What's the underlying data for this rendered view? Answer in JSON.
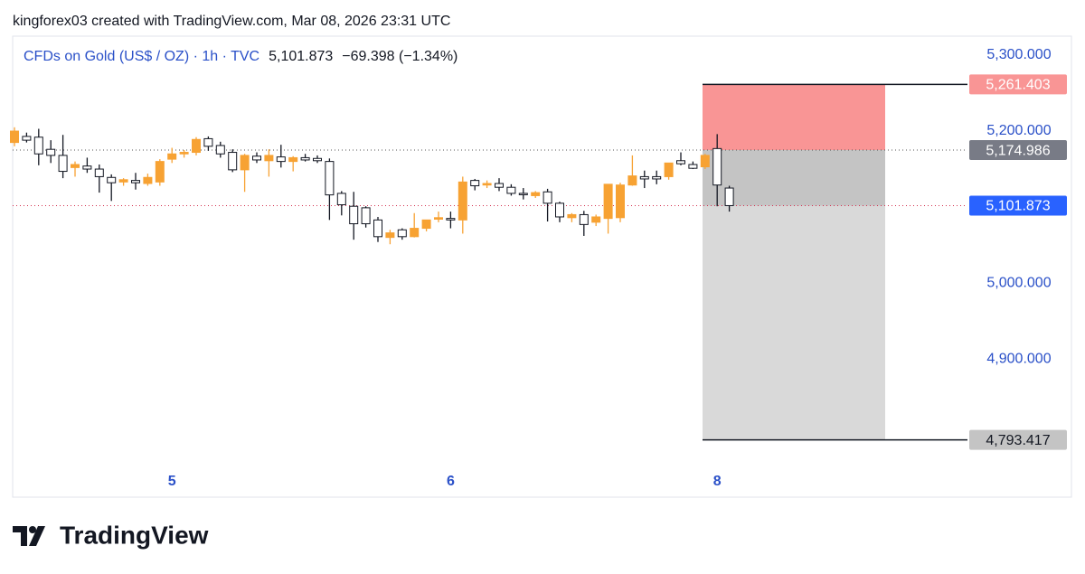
{
  "header": "kingforex03 created with TradingView.com, Mar 08, 2026 23:31 UTC",
  "footer": {
    "brand": "TradingView"
  },
  "chart_data": {
    "type": "candlestick",
    "legend": {
      "symbol": "CFDs on Gold (US$ / OZ) · 1h · TVC",
      "price": {
        "value": 5101.873,
        "label": "5,101.873"
      },
      "change": "−69.398 (−1.34%)"
    },
    "categories": [
      null,
      null,
      null,
      null,
      null,
      null,
      null,
      null,
      null,
      null,
      null,
      null,
      null,
      "5",
      null,
      null,
      null,
      null,
      null,
      null,
      null,
      null,
      null,
      null,
      null,
      null,
      null,
      null,
      null,
      null,
      null,
      null,
      null,
      null,
      null,
      null,
      "6",
      null,
      null,
      null,
      null,
      null,
      null,
      null,
      null,
      null,
      null,
      null,
      null,
      null,
      null,
      null,
      null,
      null,
      null,
      null,
      null,
      null,
      "8",
      null
    ],
    "open": [
      5185,
      5193,
      5192,
      5176,
      5168,
      5152,
      5154,
      5150,
      5139,
      5133,
      5135,
      5131,
      5133,
      5163,
      5170,
      5172,
      5190,
      5181,
      5172,
      5149,
      5167,
      5161,
      5166,
      5160,
      5165,
      5164,
      5160,
      5118,
      5101,
      5099,
      5083,
      5060,
      5070,
      5061,
      5072,
      5084,
      5085,
      5083,
      5135,
      5129,
      5131,
      5126,
      5118,
      5115,
      5120,
      5105,
      5086,
      5090,
      5080,
      5085,
      5086,
      5129,
      5140,
      5140,
      5140,
      5161,
      5156,
      5153,
      5177,
      5125
    ],
    "high": [
      5205,
      5198,
      5203,
      5188,
      5195,
      5160,
      5165,
      5156,
      5143,
      5138,
      5145,
      5144,
      5163,
      5178,
      5175,
      5192,
      5193,
      5186,
      5176,
      5170,
      5172,
      5176,
      5182,
      5167,
      5170,
      5168,
      5164,
      5121,
      5120,
      5101,
      5087,
      5070,
      5072,
      5092,
      5083,
      5094,
      5094,
      5140,
      5137,
      5135,
      5138,
      5130,
      5125,
      5121,
      5124,
      5107,
      5092,
      5095,
      5090,
      5130,
      5132,
      5168,
      5148,
      5148,
      5158,
      5172,
      5160,
      5170,
      5196,
      5128
    ],
    "low": [
      5180,
      5185,
      5155,
      5158,
      5138,
      5140,
      5145,
      5119,
      5108,
      5128,
      5123,
      5128,
      5128,
      5158,
      5165,
      5168,
      5174,
      5165,
      5146,
      5120,
      5158,
      5140,
      5152,
      5147,
      5160,
      5158,
      5083,
      5089,
      5057,
      5073,
      5054,
      5051,
      5057,
      5060,
      5068,
      5080,
      5072,
      5065,
      5122,
      5125,
      5121,
      5115,
      5110,
      5112,
      5081,
      5080,
      5080,
      5062,
      5075,
      5065,
      5080,
      5128,
      5125,
      5130,
      5136,
      5155,
      5150,
      5150,
      5101,
      5094
    ],
    "close": [
      5200,
      5188,
      5170,
      5168,
      5147,
      5156,
      5150,
      5140,
      5132,
      5136,
      5132,
      5139,
      5160,
      5170,
      5172,
      5189,
      5180,
      5170,
      5149,
      5168,
      5162,
      5168,
      5160,
      5165,
      5162,
      5161,
      5116,
      5103,
      5078,
      5078,
      5061,
      5066,
      5061,
      5072,
      5083,
      5086,
      5083,
      5133,
      5128,
      5131,
      5126,
      5118,
      5117,
      5119,
      5105,
      5087,
      5090,
      5077,
      5087,
      5130,
      5129,
      5141,
      5137,
      5137,
      5158,
      5157,
      5151,
      5168,
      5129,
      5101.873
    ],
    "up_color": "#f7a233",
    "down_color": "#ffffff",
    "ylim": [
      4718,
      5325
    ],
    "yticks": [
      {
        "value": 4900,
        "label": "4,900.000"
      },
      {
        "value": 5000,
        "label": "5,000.000"
      },
      {
        "value": 5200,
        "label": "5,200.000"
      },
      {
        "value": 5300,
        "label": "5,300.000"
      }
    ],
    "position": {
      "stop": {
        "value": 5261.403,
        "label": "5,261.403"
      },
      "entry": {
        "value": 5174.986,
        "label": "5,174.986"
      },
      "target": {
        "value": 4793.417,
        "label": "4,793.417"
      }
    }
  }
}
